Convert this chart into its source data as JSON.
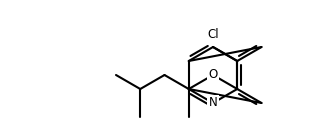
{
  "background": "#ffffff",
  "bond_color": "#000000",
  "bond_width": 1.5,
  "text_color": "#000000",
  "font_size": 8.5,
  "cl_label": "Cl",
  "o_label": "O",
  "n_label": "N"
}
